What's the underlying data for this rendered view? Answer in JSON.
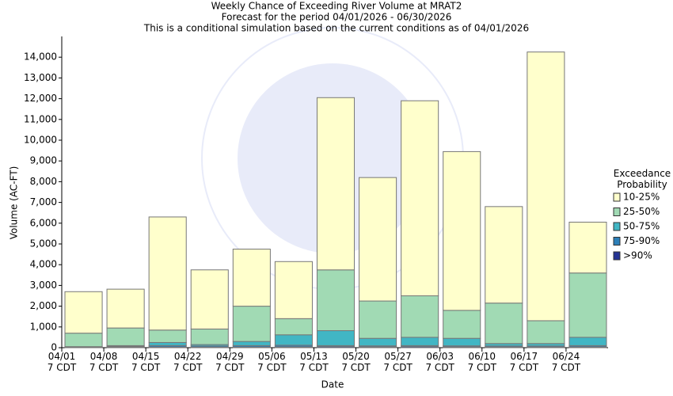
{
  "chart_data": {
    "type": "stacked_bar",
    "title": "Weekly Chance of Exceeding River Volume at MRAT2",
    "subtitle": "Forecast for the period 04/01/2026 - 06/30/2026",
    "annotation": "This is a conditional simulation based on the current conditions as of 04/01/2026",
    "x_label": "Date",
    "y_label": "Volume (AC-FT)",
    "legend_title": "Exceedance\nProbability",
    "legend_position": "right",
    "grid": false,
    "categories": [
      "04/01\n7 CDT",
      "04/08\n7 CDT",
      "04/15\n7 CDT",
      "04/22\n7 CDT",
      "04/29\n7 CDT",
      "05/06\n7 CDT",
      "05/13\n7 CDT",
      "05/20\n7 CDT",
      "05/27\n7 CDT",
      "06/03\n7 CDT",
      "06/10\n7 CDT",
      "06/17\n7 CDT",
      "06/24\n7 CDT"
    ],
    "series": [
      {
        "name": ">90%",
        "color": "#253494",
        "values": [
          10,
          20,
          30,
          20,
          30,
          40,
          50,
          40,
          50,
          40,
          30,
          30,
          40
        ]
      },
      {
        "name": "75-90%",
        "color": "#2c7fb8",
        "values": [
          20,
          40,
          70,
          60,
          70,
          80,
          50,
          50,
          50,
          50,
          50,
          50,
          60
        ]
      },
      {
        "name": "50-75%",
        "color": "#41b6c4",
        "values": [
          20,
          40,
          150,
          70,
          200,
          500,
          720,
          360,
          400,
          360,
          120,
          120,
          400
        ]
      },
      {
        "name": "25-50%",
        "color": "#a1dab4",
        "values": [
          650,
          850,
          600,
          750,
          1700,
          780,
          2930,
          1800,
          2000,
          1350,
          1950,
          1100,
          3100
        ]
      },
      {
        "name": "10-25%",
        "color": "#ffffcc",
        "values": [
          2000,
          1870,
          5450,
          2850,
          2750,
          2750,
          8300,
          5950,
          9400,
          7650,
          4650,
          12950,
          2450
        ]
      }
    ],
    "ylim": [
      0,
      15000
    ],
    "yticks": [
      0,
      {
        "value": 1000,
        "label": "1,000"
      },
      {
        "value": 2000,
        "label": "2,000"
      },
      {
        "value": 3000,
        "label": "3,000"
      },
      {
        "value": 4000,
        "label": "4,000"
      },
      {
        "value": 5000,
        "label": "5,000"
      },
      {
        "value": 6000,
        "label": "6,000"
      },
      {
        "value": 7000,
        "label": "7,000"
      },
      {
        "value": 8000,
        "label": "8,000"
      },
      {
        "value": 9000,
        "label": "9,000"
      },
      {
        "value": 10000,
        "label": "10,000"
      },
      {
        "value": 11000,
        "label": "11,000"
      },
      {
        "value": 12000,
        "label": "12,000"
      },
      {
        "value": 13000,
        "label": "13,000"
      },
      {
        "value": 14000,
        "label": "14,000"
      }
    ]
  }
}
